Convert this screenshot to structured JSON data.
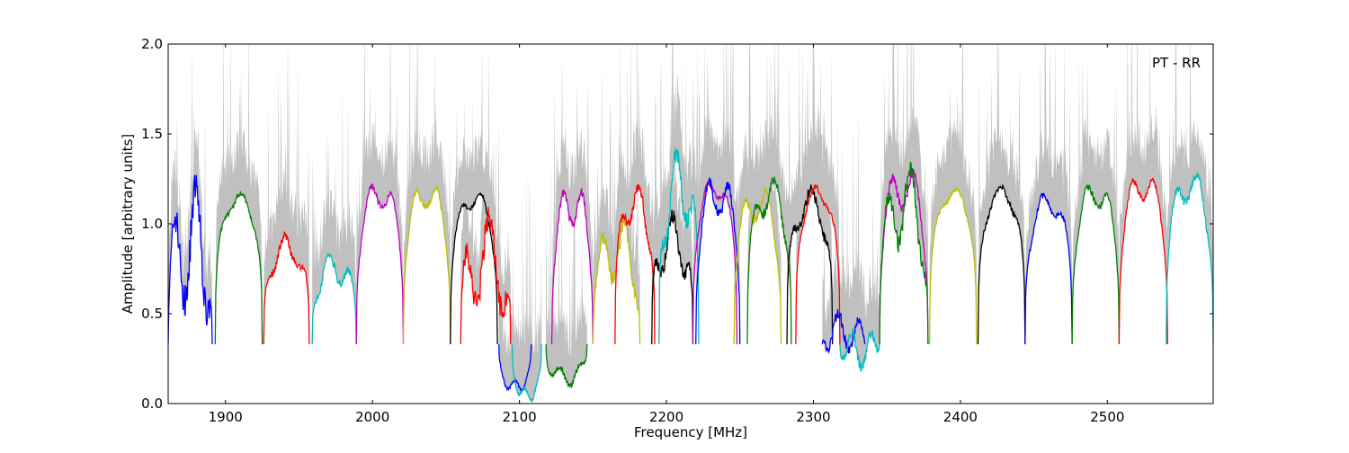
{
  "chart_data": {
    "type": "line",
    "title": "",
    "annotation": "PT - RR",
    "xlabel": "Frequency [MHz]",
    "ylabel": "Amplitude [arbitrary units]",
    "xlim": [
      1861,
      2572
    ],
    "ylim": [
      0,
      2
    ],
    "xticks": [
      1900,
      2000,
      2100,
      2200,
      2300,
      2400,
      2500
    ],
    "xtick_labels": [
      "1900",
      "2000",
      "2100",
      "2200",
      "2300",
      "2400",
      "2500"
    ],
    "yticks": [
      0,
      0.5,
      1,
      1.5,
      2
    ],
    "ytick_labels": [
      "0.0",
      "0.5",
      "1.0",
      "1.5",
      "2.0"
    ],
    "grid": false,
    "envelope_color": "#c0c0c0",
    "colors": {
      "blue": "#0000ff",
      "green": "#008000",
      "red": "#ff0000",
      "cyan": "#00bfbf",
      "magenta": "#bf00bf",
      "yellow": "#bfbf00",
      "black": "#000000"
    },
    "series_note": "Per-subband bandpass amplitude; each entry gives subband frequency span [MHz], mean plateau amplitude and ripple",
    "series": [
      {
        "color": "blue",
        "start": 1861,
        "end": 1891,
        "level": 0.88,
        "ripple": 0.32
      },
      {
        "color": "green",
        "start": 1893,
        "end": 1925,
        "level": 1.12,
        "ripple": 0.05
      },
      {
        "color": "red",
        "start": 1926,
        "end": 1957,
        "level": 0.85,
        "ripple": 0.08
      },
      {
        "color": "cyan",
        "start": 1959,
        "end": 1989,
        "level": 0.75,
        "ripple": 0.08
      },
      {
        "color": "magenta",
        "start": 1989,
        "end": 2021,
        "level": 1.15,
        "ripple": 0.06
      },
      {
        "color": "yellow",
        "start": 2021,
        "end": 2053,
        "level": 1.15,
        "ripple": 0.06
      },
      {
        "color": "black",
        "start": 2053,
        "end": 2085,
        "level": 1.12,
        "ripple": 0.04
      },
      {
        "color": "red",
        "start": 2060,
        "end": 2094,
        "level": 0.8,
        "ripple": 0.25
      },
      {
        "color": "blue",
        "start": 2086,
        "end": 2108,
        "level": 0.1,
        "ripple": 0.03
      },
      {
        "color": "cyan",
        "start": 2095,
        "end": 2115,
        "level": 0.05,
        "ripple": 0.03
      },
      {
        "color": "green",
        "start": 2118,
        "end": 2146,
        "level": 0.15,
        "ripple": 0.05
      },
      {
        "color": "magenta",
        "start": 2122,
        "end": 2150,
        "level": 1.1,
        "ripple": 0.1
      },
      {
        "color": "yellow",
        "start": 2150,
        "end": 2182,
        "level": 0.85,
        "ripple": 0.15
      },
      {
        "color": "red",
        "start": 2165,
        "end": 2192,
        "level": 1.1,
        "ripple": 0.1
      },
      {
        "color": "black",
        "start": 2190,
        "end": 2218,
        "level": 0.9,
        "ripple": 0.15
      },
      {
        "color": "cyan",
        "start": 2195,
        "end": 2222,
        "level": 1.2,
        "ripple": 0.2
      },
      {
        "color": "magenta",
        "start": 2218,
        "end": 2248,
        "level": 1.18,
        "ripple": 0.04
      },
      {
        "color": "blue",
        "start": 2220,
        "end": 2250,
        "level": 1.15,
        "ripple": 0.1
      },
      {
        "color": "yellow",
        "start": 2246,
        "end": 2278,
        "level": 1.1,
        "ripple": 0.08
      },
      {
        "color": "green",
        "start": 2255,
        "end": 2285,
        "level": 1.15,
        "ripple": 0.1
      },
      {
        "color": "black",
        "start": 2282,
        "end": 2313,
        "level": 1.1,
        "ripple": 0.1
      },
      {
        "color": "red",
        "start": 2288,
        "end": 2318,
        "level": 1.15,
        "ripple": 0.05
      },
      {
        "color": "blue",
        "start": 2306,
        "end": 2335,
        "level": 0.4,
        "ripple": 0.1
      },
      {
        "color": "cyan",
        "start": 2318,
        "end": 2345,
        "level": 0.3,
        "ripple": 0.1
      },
      {
        "color": "magenta",
        "start": 2345,
        "end": 2378,
        "level": 1.2,
        "ripple": 0.1
      },
      {
        "color": "green",
        "start": 2345,
        "end": 2378,
        "level": 1.1,
        "ripple": 0.2
      },
      {
        "color": "yellow",
        "start": 2379,
        "end": 2411,
        "level": 1.15,
        "ripple": 0.04
      },
      {
        "color": "black",
        "start": 2412,
        "end": 2444,
        "level": 1.15,
        "ripple": 0.06
      },
      {
        "color": "blue",
        "start": 2444,
        "end": 2476,
        "level": 1.1,
        "ripple": 0.06
      },
      {
        "color": "green",
        "start": 2476,
        "end": 2508,
        "level": 1.15,
        "ripple": 0.06
      },
      {
        "color": "red",
        "start": 2508,
        "end": 2541,
        "level": 1.2,
        "ripple": 0.06
      },
      {
        "color": "cyan",
        "start": 2540,
        "end": 2572,
        "level": 1.2,
        "ripple": 0.08
      }
    ]
  }
}
